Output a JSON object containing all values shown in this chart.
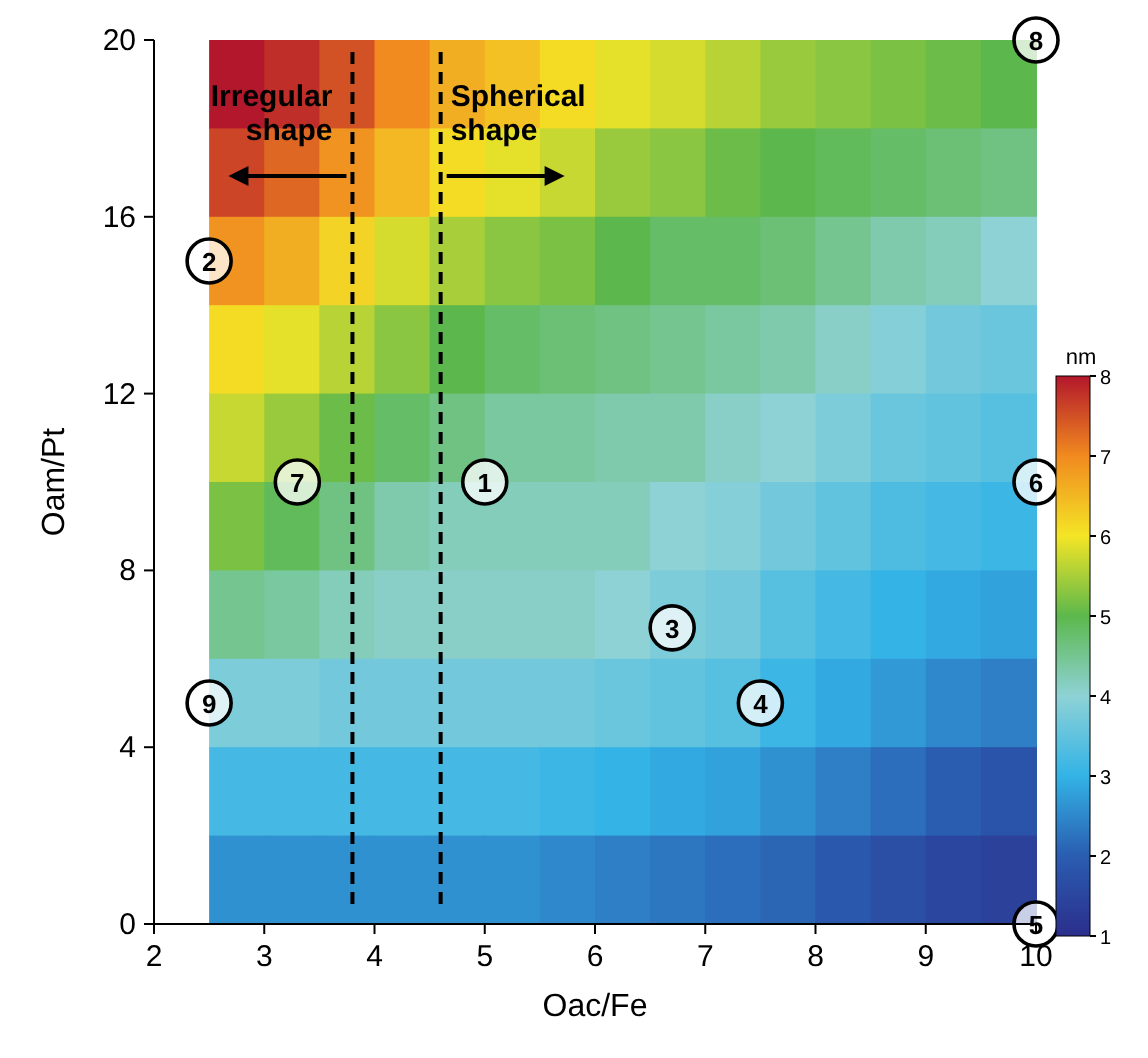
{
  "chart_data": {
    "type": "heatmap",
    "xlabel": "Oac/Fe",
    "ylabel": "Oam/Pt",
    "clabel": "nm",
    "x": [
      2.75,
      3.25,
      3.75,
      4.25,
      4.75,
      5.25,
      5.75,
      6.25,
      6.75,
      7.25,
      7.75,
      8.25,
      8.75,
      9.25,
      9.75
    ],
    "y": [
      19,
      17,
      15,
      13,
      11,
      9,
      7,
      5,
      3,
      1
    ],
    "cells": [
      [
        8.0,
        7.8,
        7.5,
        7.0,
        6.6,
        6.4,
        6.1,
        5.9,
        5.8,
        5.6,
        5.4,
        5.3,
        5.2,
        5.1,
        5.0
      ],
      [
        7.6,
        7.3,
        6.9,
        6.5,
        6.1,
        5.9,
        5.7,
        5.4,
        5.3,
        5.1,
        5.0,
        4.9,
        4.8,
        4.7,
        4.6
      ],
      [
        6.9,
        6.6,
        6.2,
        5.8,
        5.5,
        5.3,
        5.2,
        5.0,
        4.8,
        4.8,
        4.7,
        4.5,
        4.3,
        4.2,
        4.0
      ],
      [
        6.1,
        5.9,
        5.6,
        5.3,
        5.0,
        4.8,
        4.7,
        4.6,
        4.5,
        4.4,
        4.3,
        4.1,
        3.9,
        3.7,
        3.6
      ],
      [
        5.7,
        5.4,
        5.1,
        4.8,
        4.6,
        4.4,
        4.4,
        4.3,
        4.3,
        4.1,
        4.0,
        3.8,
        3.6,
        3.5,
        3.4
      ],
      [
        5.2,
        4.9,
        4.6,
        4.3,
        4.2,
        4.2,
        4.2,
        4.2,
        4.0,
        3.9,
        3.7,
        3.5,
        3.3,
        3.2,
        3.1
      ],
      [
        4.5,
        4.4,
        4.2,
        4.1,
        4.1,
        4.1,
        4.1,
        4.0,
        3.8,
        3.7,
        3.4,
        3.2,
        3.0,
        2.9,
        2.8
      ],
      [
        3.8,
        3.8,
        3.7,
        3.7,
        3.7,
        3.7,
        3.7,
        3.6,
        3.5,
        3.4,
        3.1,
        2.9,
        2.7,
        2.5,
        2.4
      ],
      [
        3.2,
        3.2,
        3.2,
        3.2,
        3.2,
        3.2,
        3.1,
        3.0,
        2.9,
        2.8,
        2.6,
        2.4,
        2.2,
        2.0,
        1.8
      ],
      [
        2.6,
        2.6,
        2.6,
        2.6,
        2.6,
        2.6,
        2.5,
        2.4,
        2.3,
        2.2,
        2.1,
        1.9,
        1.7,
        1.5,
        1.4
      ]
    ],
    "xlim": [
      2,
      10
    ],
    "xticks": [
      2,
      3,
      4,
      5,
      6,
      7,
      8,
      9,
      10
    ],
    "ylim": [
      0,
      20
    ],
    "yticks": [
      0,
      4,
      8,
      12,
      16,
      20
    ],
    "clim": [
      1,
      8
    ],
    "cticks": [
      1,
      2,
      3,
      4,
      5,
      6,
      7,
      8
    ],
    "ref_lines": [
      {
        "axis": "x",
        "value": 3.8,
        "label": "Irregular shape",
        "line_style": "dashed",
        "color": "#000000"
      },
      {
        "axis": "x",
        "value": 4.6,
        "label": "Spherical shape",
        "line_style": "dashed",
        "color": "#000000"
      }
    ],
    "annotations": [
      {
        "text": "1",
        "x": 5,
        "y": 10
      },
      {
        "text": "2",
        "x": 2.5,
        "y": 15
      },
      {
        "text": "3",
        "x": 6.7,
        "y": 6.7
      },
      {
        "text": "4",
        "x": 7.5,
        "y": 5
      },
      {
        "text": "5",
        "x": 10,
        "y": 0
      },
      {
        "text": "6",
        "x": 10,
        "y": 10
      },
      {
        "text": "7",
        "x": 3.3,
        "y": 10
      },
      {
        "text": "8",
        "x": 10,
        "y": 20
      },
      {
        "text": "9",
        "x": 2.5,
        "y": 5
      }
    ]
  }
}
